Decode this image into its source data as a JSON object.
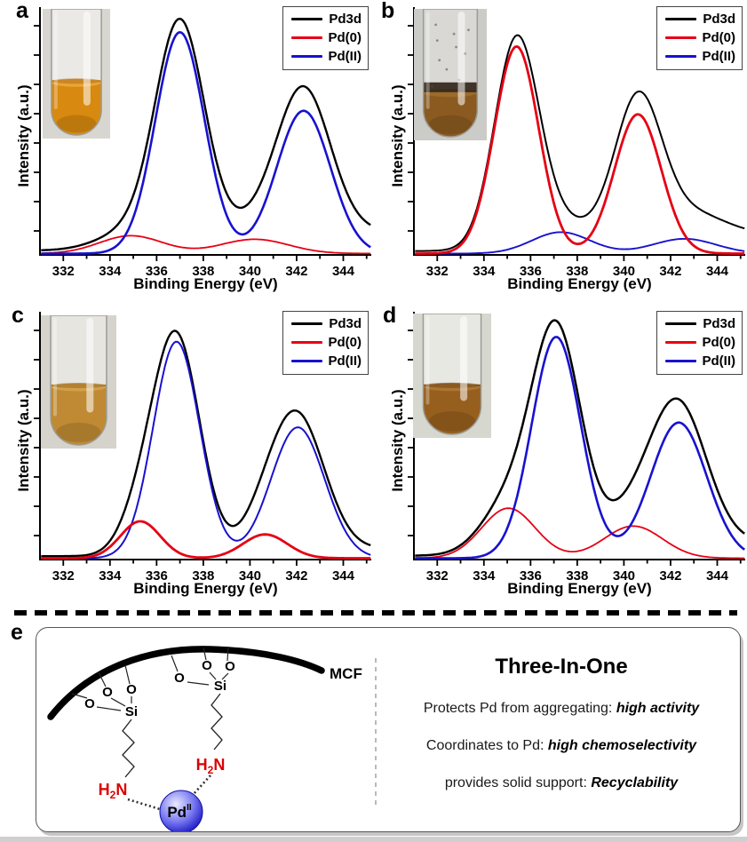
{
  "panels": [
    {
      "label": "a",
      "ylabel": "Intensity (a.u.)",
      "xlabel": "Binding Energy (eV)",
      "inset": {
        "bg": "#d8d6d1",
        "glass": "#ebe9e5",
        "liquid": "#d8890f",
        "meniscus": "#e8a437",
        "rim": "#a85f0a",
        "fill_level": 0.55,
        "dirty": false
      }
    },
    {
      "label": "b",
      "ylabel": "Intensity (a.u.)",
      "xlabel": "Binding Energy (eV)",
      "inset": {
        "bg": "#cbcbc7",
        "glass": "#d9d8d4",
        "liquid": "#8a5a20",
        "meniscus": "#9c6a2a",
        "rim": "#33261a",
        "fill_level": 0.62,
        "dirty": true
      }
    },
    {
      "label": "c",
      "ylabel": "Intensity (a.u.)",
      "xlabel": "Binding Energy (eV)",
      "inset": {
        "bg": "#d5d3cb",
        "glass": "#e7e5df",
        "liquid": "#bf8a33",
        "meniscus": "#d3a04a",
        "rim": "#8a5c17",
        "fill_level": 0.52,
        "dirty": false
      }
    },
    {
      "label": "d",
      "ylabel": "Intensity (a.u.)",
      "xlabel": "Binding Energy (eV)",
      "inset": {
        "bg": "#d6d7cf",
        "glass": "#e8e8e2",
        "liquid": "#975f1e",
        "meniscus": "#ad7430",
        "rim": "#5f3c14",
        "fill_level": 0.57,
        "dirty": false
      }
    }
  ],
  "chart_data": [
    {
      "panel": "a",
      "type": "line",
      "xlabel": "Binding Energy (eV)",
      "ylabel": "Intensity (a.u.)",
      "grid": false,
      "x_range": [
        331,
        345.2
      ],
      "xticks": [
        332,
        334,
        336,
        338,
        340,
        342,
        344
      ],
      "x_minor_ticks": [
        333,
        335,
        337,
        339,
        341,
        343,
        345
      ],
      "legend_position": "top-right",
      "series": [
        {
          "name": "Pd3d",
          "color": "#000000",
          "lw": 2.4,
          "role": "envelope",
          "background": {
            "base": 0.012,
            "amp": 0.085,
            "mid": 339.5,
            "slope": 1.8
          },
          "extra_peaks": []
        },
        {
          "name": "Pd(0)",
          "color": "#e60014",
          "lw": 1.8,
          "peaks": [
            {
              "center": 334.9,
              "height": 0.075,
              "sigma": 1.35
            },
            {
              "center": 340.2,
              "height": 0.06,
              "sigma": 1.45
            }
          ]
        },
        {
          "name": "Pd(II)",
          "color": "#1812cf",
          "lw": 2.6,
          "peaks": [
            {
              "center": 337.0,
              "height": 0.93,
              "sigma": 1.05
            },
            {
              "center": 342.3,
              "height": 0.6,
              "sigma": 1.15
            }
          ]
        }
      ],
      "z_order": [
        0,
        1,
        2
      ]
    },
    {
      "panel": "b",
      "type": "line",
      "xlabel": "Binding Energy (eV)",
      "ylabel": "Intensity (a.u.)",
      "grid": false,
      "x_range": [
        331,
        345.2
      ],
      "xticks": [
        332,
        334,
        336,
        338,
        340,
        342,
        344
      ],
      "x_minor_ticks": [
        333,
        335,
        337,
        339,
        341,
        343,
        345
      ],
      "legend_position": "top-right",
      "series": [
        {
          "name": "Pd3d",
          "color": "#000000",
          "lw": 2.0,
          "role": "envelope",
          "background": {
            "base": 0.01,
            "amp": 0.065,
            "mid": 338.4,
            "slope": 1.6
          },
          "extra_peaks": [
            {
              "center": 343.3,
              "height": 0.042,
              "sigma": 1.6
            }
          ]
        },
        {
          "name": "Pd(0)",
          "color": "#e60014",
          "lw": 2.8,
          "peaks": [
            {
              "center": 335.4,
              "height": 0.87,
              "sigma": 0.95
            },
            {
              "center": 340.6,
              "height": 0.585,
              "sigma": 1.0
            }
          ]
        },
        {
          "name": "Pd(II)",
          "color": "#1812cf",
          "lw": 1.9,
          "peaks": [
            {
              "center": 337.3,
              "height": 0.09,
              "sigma": 1.25
            },
            {
              "center": 342.6,
              "height": 0.062,
              "sigma": 1.35
            }
          ]
        }
      ],
      "z_order": [
        0,
        2,
        1
      ]
    },
    {
      "panel": "c",
      "type": "line",
      "xlabel": "Binding Energy (eV)",
      "ylabel": "Intensity (a.u.)",
      "grid": false,
      "x_range": [
        331,
        345.2
      ],
      "xticks": [
        332,
        334,
        336,
        338,
        340,
        342,
        344
      ],
      "x_minor_ticks": [
        333,
        335,
        337,
        339,
        341,
        343,
        345
      ],
      "legend_position": "top-right",
      "series": [
        {
          "name": "Pd3d",
          "color": "#000000",
          "lw": 2.4,
          "role": "envelope",
          "background": {
            "base": 0.008,
            "amp": 0.035,
            "mid": 340.0,
            "slope": 2.0
          },
          "extra_peaks": []
        },
        {
          "name": "Pd(0)",
          "color": "#e60014",
          "lw": 2.8,
          "peaks": [
            {
              "center": 335.3,
              "height": 0.155,
              "sigma": 0.85
            },
            {
              "center": 340.65,
              "height": 0.1,
              "sigma": 0.95
            }
          ]
        },
        {
          "name": "Pd(II)",
          "color": "#1812cf",
          "lw": 2.0,
          "peaks": [
            {
              "center": 336.85,
              "height": 0.91,
              "sigma": 1.0
            },
            {
              "center": 342.05,
              "height": 0.55,
              "sigma": 1.15
            }
          ]
        }
      ],
      "z_order": [
        0,
        2,
        1
      ]
    },
    {
      "panel": "d",
      "type": "line",
      "xlabel": "Binding Energy (eV)",
      "ylabel": "Intensity (a.u.)",
      "grid": false,
      "x_range": [
        331,
        345.2
      ],
      "xticks": [
        332,
        334,
        336,
        338,
        340,
        342,
        344
      ],
      "x_minor_ticks": [
        333,
        335,
        337,
        339,
        341,
        343,
        345
      ],
      "legend_position": "top-right",
      "series": [
        {
          "name": "Pd3d",
          "color": "#000000",
          "lw": 2.5,
          "role": "envelope",
          "background": {
            "base": 0.01,
            "amp": 0.06,
            "mid": 339.8,
            "slope": 1.8
          },
          "extra_peaks": []
        },
        {
          "name": "Pd(0)",
          "color": "#e60014",
          "lw": 1.8,
          "peaks": [
            {
              "center": 335.05,
              "height": 0.21,
              "sigma": 1.15
            },
            {
              "center": 340.4,
              "height": 0.135,
              "sigma": 1.25
            }
          ]
        },
        {
          "name": "Pd(II)",
          "color": "#1812cf",
          "lw": 2.6,
          "peaks": [
            {
              "center": 337.1,
              "height": 0.93,
              "sigma": 1.05
            },
            {
              "center": 342.35,
              "height": 0.57,
              "sigma": 1.2
            }
          ]
        }
      ],
      "z_order": [
        0,
        1,
        2
      ]
    }
  ],
  "scheme": {
    "panel_label": "e",
    "mcf_label": "MCF",
    "atoms": {
      "o": "O",
      "si": "Si"
    },
    "amine": {
      "h": "H",
      "sub": "2",
      "n": "N",
      "color": "#dd0000"
    },
    "pd": {
      "label": "Pd",
      "sup": "II",
      "sphere_color": "#2222cc"
    },
    "text": {
      "title": "Three-In-One",
      "lines": [
        {
          "plain": "Protects Pd from aggregating: ",
          "em": "high activity"
        },
        {
          "plain": "Coordinates to Pd: ",
          "em": "high chemoselectivity"
        },
        {
          "plain": "provides solid support: ",
          "em": "Recyclability"
        }
      ]
    }
  }
}
